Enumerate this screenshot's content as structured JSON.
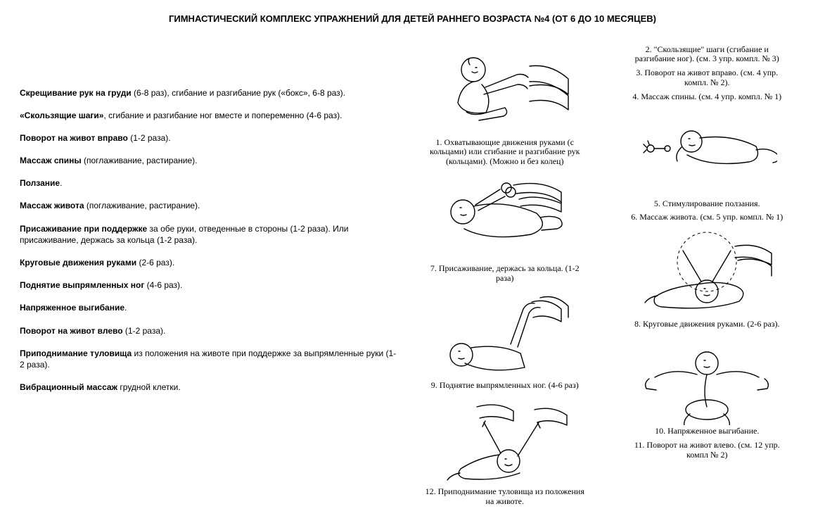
{
  "title": "ГИМНАСТИЧЕСКИЙ КОМПЛЕКС УПРАЖНЕНИЙ ДЛЯ ДЕТЕЙ РАННЕГО ВОЗРАСТА №4 (ОТ 6 ДО 10 МЕСЯЦЕВ)",
  "exercises": [
    {
      "bold": "Скрещивание рук на груди",
      "rest": " (6-8 раз), сгибание и разгибание рук («бокс», 6-8 раз)."
    },
    {
      "bold": "«Скользящие шаги»",
      "rest": ", сгибание и разгибание ног вместе и попеременно (4-6 раз)."
    },
    {
      "bold": "Поворот на живот вправо",
      "rest": " (1-2 раза)."
    },
    {
      "bold": "Массаж спины",
      "rest": " (поглаживание, растирание)."
    },
    {
      "bold": "Ползание",
      "rest": "."
    },
    {
      "bold": "Массаж живота",
      "rest": " (поглаживание, растирание)."
    },
    {
      "bold": "Присаживание при поддержке",
      "rest": " за обе руки, отведенные в стороны (1-2 раза). Или присаживание, держась за кольца (1-2 раза)."
    },
    {
      "bold": "Круговые движения руками",
      "rest": " (2-6 раз)."
    },
    {
      "bold": "Поднятие выпрямленных ног",
      "rest": " (4-6 раз)."
    },
    {
      "bold": "Напряженное выгибание",
      "rest": "."
    },
    {
      "bold": "Поворот на живот влево",
      "rest": " (1-2 раза)."
    },
    {
      "bold": "Приподнимание туловища",
      "rest": " из положения на животе при поддержке за выпрямленные руки (1-2 раза)."
    },
    {
      "bold": "Вибрационный массаж",
      "rest": " грудной клетки."
    }
  ],
  "figures_col1": [
    {
      "svgType": "sitting-arms",
      "caption": "1. Охватывающие движения руками (с кольцами) или сгибание и разгибание рук (кольцами). (Можно и без колец)"
    },
    {
      "svgType": "lying-rings",
      "caption": "7. Присаживание, держась за кольца. (1-2 раза)"
    },
    {
      "svgType": "legs-up",
      "caption": "9. Поднятие выпрямленных ног. (4-6 раз)"
    },
    {
      "svgType": "prone-lift",
      "caption": "12. Приподнимание туловища из положения на животе."
    }
  ],
  "captions_col2_top": [
    "2. \"Скользящие\" шаги (сгибание и разгибание ног). (см. 3 упр. компл. № 3)",
    "3. Поворот на живот вправо. (см. 4 упр. компл. № 2).",
    "4. Массаж спины. (см. 4 упр. компл. № 1)"
  ],
  "figures_col2": [
    {
      "svgType": "crawl",
      "caption": "5. Стимулирование ползания."
    },
    {
      "captionOnly": "6. Массаж живота. (см. 5 упр. компл. № 1)"
    },
    {
      "svgType": "arm-circles",
      "caption": "8. Круговые движения руками. (2-6 раз)."
    },
    {
      "svgType": "arching",
      "caption": "10. Напряженное выгибание."
    },
    {
      "captionOnly": "11. Поворот на живот влево. (см. 12 упр. компл № 2)"
    }
  ],
  "style": {
    "stroke": "#000000",
    "bg": "#ffffff"
  }
}
